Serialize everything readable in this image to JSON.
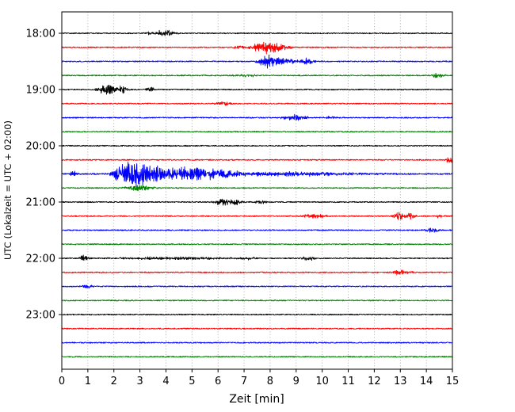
{
  "chart_data": {
    "type": "line",
    "subtype": "seismogram-helicorder",
    "title": "",
    "xlabel": "Zeit [min]",
    "ylabel": "UTC (Lokalzeit = UTC + 02:00)",
    "xlim": [
      0,
      15
    ],
    "x_ticks": [
      "0",
      "1",
      "2",
      "3",
      "4",
      "5",
      "6",
      "7",
      "8",
      "9",
      "10",
      "11",
      "12",
      "13",
      "14",
      "15"
    ],
    "y_tick_labels": [
      "18:00",
      "19:00",
      "20:00",
      "21:00",
      "22:00",
      "23:00"
    ],
    "grid": "vertical-dotted",
    "legend": "none",
    "trace_color_cycle": [
      "#000000",
      "#ff0000",
      "#0000ff",
      "#008000"
    ],
    "minutes_per_row": 15,
    "traces": [
      {
        "time": "18:00",
        "color": "#000000",
        "noise": 0.7,
        "events": [
          {
            "t": 3.3,
            "dur": 0.2,
            "amp": 1.5
          },
          {
            "t": 3.9,
            "dur": 0.5,
            "amp": 4
          }
        ]
      },
      {
        "time": "18:15",
        "color": "#ff0000",
        "noise": 0.7,
        "events": [
          {
            "t": 6.8,
            "dur": 0.4,
            "amp": 2
          },
          {
            "t": 7.6,
            "dur": 0.5,
            "amp": 5
          },
          {
            "t": 8.1,
            "dur": 0.6,
            "amp": 6,
            "decay": 0.5
          },
          {
            "t": 8.6,
            "dur": 0.3,
            "amp": 2.5
          }
        ]
      },
      {
        "time": "18:30",
        "color": "#0000ff",
        "noise": 0.7,
        "events": [
          {
            "t": 7.9,
            "dur": 0.5,
            "amp": 7
          },
          {
            "t": 8.4,
            "dur": 0.4,
            "amp": 4,
            "decay": 0.9
          },
          {
            "t": 9.4,
            "dur": 0.4,
            "amp": 3
          }
        ]
      },
      {
        "time": "18:45",
        "color": "#008000",
        "noise": 0.7,
        "events": [
          {
            "t": 7.0,
            "dur": 0.6,
            "amp": 1.8
          },
          {
            "t": 14.4,
            "dur": 0.3,
            "amp": 3
          }
        ]
      },
      {
        "time": "19:00",
        "color": "#000000",
        "noise": 0.7,
        "events": [
          {
            "t": 1.7,
            "dur": 0.5,
            "amp": 6
          },
          {
            "t": 2.3,
            "dur": 0.3,
            "amp": 5
          },
          {
            "t": 3.4,
            "dur": 0.25,
            "amp": 3
          }
        ]
      },
      {
        "time": "19:15",
        "color": "#ff0000",
        "noise": 0.7,
        "events": [
          {
            "t": 6.2,
            "dur": 0.5,
            "amp": 2.2
          }
        ]
      },
      {
        "time": "19:30",
        "color": "#0000ff",
        "noise": 0.7,
        "events": [
          {
            "t": 8.9,
            "dur": 0.6,
            "amp": 4
          },
          {
            "t": 10.3,
            "dur": 0.3,
            "amp": 2
          }
        ]
      },
      {
        "time": "19:45",
        "color": "#008000",
        "noise": 0.7,
        "events": []
      },
      {
        "time": "20:00",
        "color": "#000000",
        "noise": 0.7,
        "events": []
      },
      {
        "time": "20:15",
        "color": "#ff0000",
        "noise": 0.7,
        "events": [
          {
            "t": 14.9,
            "dur": 0.25,
            "amp": 3
          }
        ]
      },
      {
        "time": "20:30",
        "color": "#0000ff",
        "noise": 0.9,
        "events": [
          {
            "t": 0.45,
            "dur": 0.2,
            "amp": 3
          },
          {
            "t": 2.2,
            "dur": 0.5,
            "amp": 7
          },
          {
            "t": 2.8,
            "dur": 0.7,
            "amp": 15
          },
          {
            "t": 3.6,
            "dur": 0.6,
            "amp": 8,
            "decay": 1.2
          },
          {
            "t": 4.8,
            "dur": 0.7,
            "amp": 7,
            "decay": 2.5
          },
          {
            "t": 8.5,
            "dur": 2.5,
            "amp": 2.2,
            "decay": 4
          }
        ]
      },
      {
        "time": "20:45",
        "color": "#008000",
        "noise": 0.7,
        "events": [
          {
            "t": 2.9,
            "dur": 0.7,
            "amp": 3.5
          }
        ]
      },
      {
        "time": "21:00",
        "color": "#000000",
        "noise": 0.7,
        "events": [
          {
            "t": 6.2,
            "dur": 0.5,
            "amp": 4
          },
          {
            "t": 6.7,
            "dur": 0.3,
            "amp": 3
          },
          {
            "t": 7.6,
            "dur": 0.3,
            "amp": 2
          }
        ]
      },
      {
        "time": "21:15",
        "color": "#ff0000",
        "noise": 0.7,
        "events": [
          {
            "t": 9.6,
            "dur": 0.7,
            "amp": 2.2
          },
          {
            "t": 12.9,
            "dur": 0.3,
            "amp": 5
          },
          {
            "t": 13.4,
            "dur": 0.25,
            "amp": 4
          },
          {
            "t": 14.5,
            "dur": 0.2,
            "amp": 2
          }
        ]
      },
      {
        "time": "21:30",
        "color": "#0000ff",
        "noise": 0.7,
        "events": [
          {
            "t": 14.2,
            "dur": 0.4,
            "amp": 2.5
          }
        ]
      },
      {
        "time": "21:45",
        "color": "#008000",
        "noise": 0.7,
        "events": []
      },
      {
        "time": "22:00",
        "color": "#000000",
        "noise": 0.7,
        "events": [
          {
            "t": 0.85,
            "dur": 0.25,
            "amp": 3.5
          },
          {
            "t": 4.0,
            "dur": 2.8,
            "amp": 1.5,
            "decay": 3.2
          },
          {
            "t": 7.2,
            "dur": 0.3,
            "amp": 2
          },
          {
            "t": 9.5,
            "dur": 0.4,
            "amp": 2.2
          }
        ]
      },
      {
        "time": "22:15",
        "color": "#ff0000",
        "noise": 0.7,
        "events": [
          {
            "t": 13.0,
            "dur": 0.5,
            "amp": 3
          }
        ]
      },
      {
        "time": "22:30",
        "color": "#0000ff",
        "noise": 0.7,
        "events": [
          {
            "t": 1.0,
            "dur": 0.3,
            "amp": 2.5
          }
        ]
      },
      {
        "time": "22:45",
        "color": "#008000",
        "noise": 0.7,
        "events": []
      },
      {
        "time": "23:00",
        "color": "#000000",
        "noise": 0.7,
        "events": []
      },
      {
        "time": "23:15",
        "color": "#ff0000",
        "noise": 0.7,
        "events": []
      },
      {
        "time": "23:30",
        "color": "#0000ff",
        "noise": 0.7,
        "events": []
      },
      {
        "time": "23:45",
        "color": "#008000",
        "noise": 0.7,
        "events": []
      }
    ]
  }
}
